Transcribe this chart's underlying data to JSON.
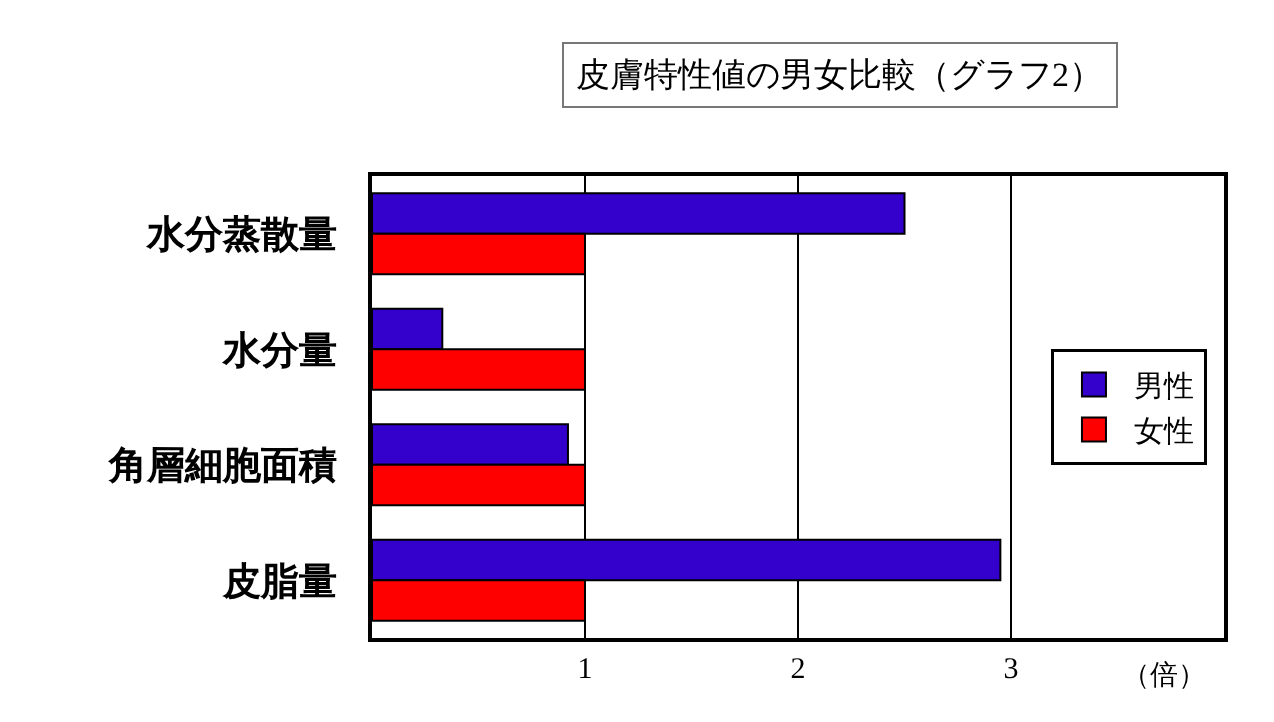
{
  "chart_data": {
    "type": "bar",
    "orientation": "horizontal",
    "title": "皮膚特性値の男女比較（グラフ2）",
    "xlabel": "（倍）",
    "categories": [
      "水分蒸散量",
      "水分量",
      "角層細胞面積",
      "皮脂量"
    ],
    "series": [
      {
        "name": "男性",
        "color": "#3300cc",
        "values": [
          2.5,
          0.33,
          0.92,
          2.95
        ]
      },
      {
        "name": "女性",
        "color": "#ff0000",
        "values": [
          1,
          1,
          1,
          1
        ]
      }
    ],
    "xlim": [
      0,
      4
    ],
    "xticks": [
      1,
      2,
      3
    ],
    "grid": "x",
    "legend": "right"
  }
}
